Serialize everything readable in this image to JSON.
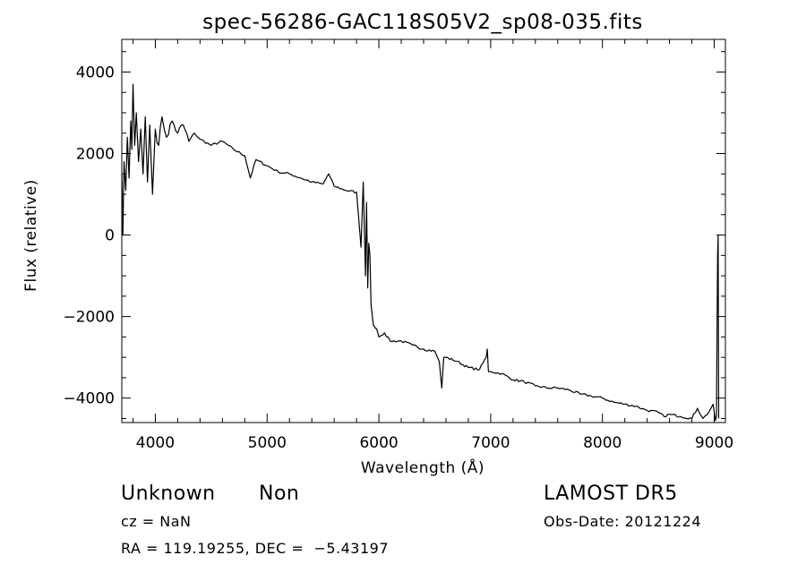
{
  "chart_data": {
    "type": "line",
    "title": "spec-56286-GAC118S05V2_sp08-035.fits",
    "xlabel": "Wavelength (Å)",
    "ylabel": "Flux (relative)",
    "xlim": [
      3700,
      9100
    ],
    "ylim": [
      -4600,
      4800
    ],
    "xticks": [
      4000,
      5000,
      6000,
      7000,
      8000,
      9000
    ],
    "yticks": [
      -4000,
      -2000,
      0,
      2000,
      4000
    ],
    "xtick_labels": [
      "4000",
      "5000",
      "6000",
      "7000",
      "8000",
      "9000"
    ],
    "ytick_labels": [
      "−4000",
      "−2000",
      "0",
      "2000",
      "4000"
    ],
    "grid": false,
    "series": [
      {
        "x": [
          3700,
          3710,
          3720,
          3735,
          3750,
          3765,
          3780,
          3790,
          3800,
          3815,
          3830,
          3850,
          3870,
          3890,
          3910,
          3930,
          3950,
          3975,
          4000,
          4030,
          4060,
          4100,
          4150,
          4200,
          4250,
          4300,
          4350,
          4400,
          4500,
          4600,
          4700,
          4800,
          4850,
          4900,
          5000,
          5100,
          5200,
          5300,
          5400,
          5500,
          5550,
          5600,
          5700,
          5800,
          5840,
          5860,
          5880,
          5890,
          5900,
          5910,
          5920,
          5930,
          5950,
          5980,
          6000,
          6050,
          6100,
          6200,
          6300,
          6400,
          6500,
          6540,
          6563,
          6580,
          6600,
          6700,
          6800,
          6900,
          6960,
          6970,
          6980,
          7000,
          7100,
          7200,
          7300,
          7400,
          7500,
          7600,
          7700,
          7800,
          7900,
          8000,
          8100,
          8200,
          8300,
          8400,
          8500,
          8550,
          8600,
          8700,
          8800,
          8850,
          8900,
          8950,
          8990,
          9010,
          9020,
          9030,
          9035,
          9040
        ],
        "y": [
          1500,
          0,
          1800,
          1100,
          2400,
          1400,
          2800,
          2100,
          3700,
          2200,
          3000,
          1800,
          2600,
          1500,
          2900,
          1300,
          2700,
          1000,
          2600,
          2200,
          2900,
          2400,
          2800,
          2500,
          2700,
          2300,
          2500,
          2350,
          2200,
          2300,
          2100,
          1950,
          1400,
          1850,
          1700,
          1550,
          1500,
          1400,
          1300,
          1250,
          1500,
          1200,
          1100,
          1050,
          -300,
          1300,
          -1000,
          800,
          -1300,
          -200,
          -500,
          -1700,
          -2200,
          -2300,
          -2500,
          -2400,
          -2600,
          -2600,
          -2700,
          -2800,
          -2850,
          -3100,
          -3750,
          -3000,
          -3000,
          -3100,
          -3250,
          -3300,
          -3000,
          -2800,
          -3350,
          -3350,
          -3400,
          -3550,
          -3600,
          -3700,
          -3750,
          -3750,
          -3800,
          -3900,
          -3950,
          -4000,
          -4100,
          -4150,
          -4200,
          -4300,
          -4350,
          -4450,
          -4400,
          -4450,
          -4500,
          -4250,
          -4500,
          -4350,
          -4150,
          -4550,
          -4450,
          -500,
          0,
          -4500
        ]
      }
    ]
  },
  "footer": {
    "object_class": "Unknown",
    "subclass": "Non",
    "survey": "LAMOST DR5",
    "redshift_label": "cz = NaN",
    "obs_date_label": "Obs-Date: 20121224",
    "coords_label": "RA = 119.19255, DEC =  −5.43197"
  }
}
